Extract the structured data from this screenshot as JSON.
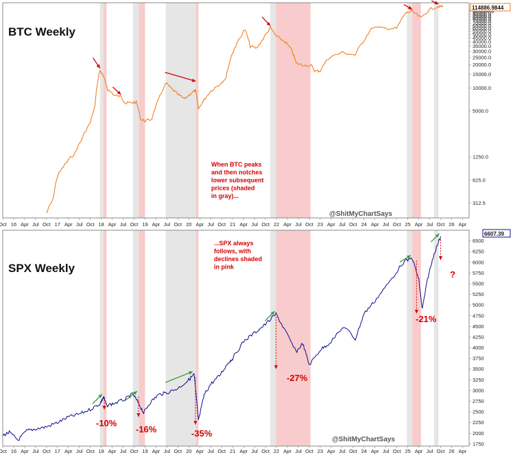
{
  "chart_data": [
    {
      "type": "line",
      "title": "BTC Weekly",
      "scale": "log",
      "color": "#f07f1e",
      "ylim": [
        200,
        130000
      ],
      "y_ticks": [
        "312.5",
        "625.0",
        "1250.0",
        "5000.0",
        "10000.0",
        "15000.0",
        "20000.0",
        "25000.0",
        "30000.0",
        "35000.0",
        "40000.0",
        "45000.0",
        "50000.0",
        "55000.0",
        "60000.0",
        "65000.0",
        "70000.0",
        "75000.0",
        "80000.0",
        "85000.0",
        "90000.0",
        "95000.0",
        "100000.0",
        "105000.0"
      ],
      "y_tick_values": [
        312.5,
        625,
        1250,
        5000,
        10000,
        15000,
        20000,
        25000,
        30000,
        35000,
        40000,
        45000,
        50000,
        55000,
        60000,
        65000,
        70000,
        75000,
        80000,
        85000,
        90000,
        95000,
        100000,
        105000
      ],
      "last_value_label": "114886.9844",
      "x": [
        2016.75,
        2016.9,
        2017.0,
        2017.2,
        2017.4,
        2017.55,
        2017.75,
        2017.85,
        2017.97,
        2018.05,
        2018.15,
        2018.3,
        2018.45,
        2018.55,
        2018.65,
        2018.8,
        2018.9,
        2019.0,
        2019.15,
        2019.3,
        2019.48,
        2019.6,
        2019.75,
        2019.9,
        2020.05,
        2020.15,
        2020.22,
        2020.35,
        2020.5,
        2020.7,
        2020.85,
        2021.0,
        2021.1,
        2021.28,
        2021.4,
        2021.55,
        2021.7,
        2021.86,
        2022.0,
        2022.2,
        2022.35,
        2022.45,
        2022.6,
        2022.8,
        2022.88,
        2023.0,
        2023.2,
        2023.5,
        2023.8,
        2024.0,
        2024.2,
        2024.5,
        2024.75,
        2024.95,
        2025.1,
        2025.3,
        2025.5,
        2025.7,
        2025.8
      ],
      "values": [
        230,
        350,
        700,
        1050,
        1400,
        2100,
        3500,
        5500,
        17000,
        14000,
        9500,
        8000,
        7700,
        6300,
        6400,
        6500,
        3900,
        3700,
        3900,
        6800,
        11500,
        9800,
        8200,
        7200,
        8500,
        9300,
        5300,
        7000,
        9100,
        11100,
        13500,
        29000,
        38000,
        58000,
        35000,
        33000,
        44000,
        61000,
        47000,
        40000,
        31000,
        21000,
        20000,
        19500,
        16500,
        16800,
        25000,
        29000,
        27000,
        42000,
        62000,
        60000,
        60000,
        95000,
        100000,
        82000,
        106000,
        117000,
        114887
      ],
      "annotation": "When BTC peaks and then notches lower subsequent prices (shaded in gray)..."
    },
    {
      "type": "line",
      "title": "SPX Weekly",
      "scale": "linear",
      "color": "#0a0a8c",
      "ylim": [
        1700,
        6750
      ],
      "y_ticks": [
        "1750",
        "2000",
        "2250",
        "2500",
        "2750",
        "3000",
        "3250",
        "3500",
        "3750",
        "4000",
        "4250",
        "4500",
        "4750",
        "5000",
        "5250",
        "5500",
        "5750",
        "6000",
        "6250",
        "6500"
      ],
      "y_tick_values": [
        1750,
        2000,
        2250,
        2500,
        2750,
        3000,
        3250,
        3500,
        3750,
        4000,
        4250,
        4500,
        4750,
        5000,
        5250,
        5500,
        5750,
        6000,
        6250,
        6500
      ],
      "last_value_label": "6607.39",
      "x": [
        2015.75,
        2015.9,
        2016.1,
        2016.3,
        2016.5,
        2016.75,
        2017.0,
        2017.25,
        2017.5,
        2017.75,
        2017.97,
        2018.05,
        2018.12,
        2018.3,
        2018.55,
        2018.72,
        2018.85,
        2018.97,
        2019.1,
        2019.3,
        2019.5,
        2019.75,
        2020.0,
        2020.12,
        2020.22,
        2020.35,
        2020.5,
        2020.7,
        2020.9,
        2021.0,
        2021.25,
        2021.5,
        2021.75,
        2021.99,
        2022.2,
        2022.45,
        2022.6,
        2022.75,
        2023.0,
        2023.2,
        2023.55,
        2023.8,
        2024.0,
        2024.25,
        2024.55,
        2024.9,
        2025.1,
        2025.25,
        2025.33,
        2025.45,
        2025.6,
        2025.75
      ],
      "values": [
        1950,
        2020,
        1840,
        2060,
        2100,
        2150,
        2250,
        2380,
        2450,
        2560,
        2690,
        2850,
        2650,
        2700,
        2800,
        2920,
        2700,
        2480,
        2700,
        2900,
        2950,
        3050,
        3250,
        3380,
        2300,
        2900,
        3150,
        3350,
        3650,
        3750,
        4150,
        4350,
        4550,
        4790,
        4400,
        3900,
        4100,
        3600,
        3950,
        4100,
        4500,
        4200,
        4800,
        5100,
        5500,
        6000,
        6100,
        5600,
        4900,
        5600,
        6200,
        6607
      ],
      "annotation": "...SPX always follows, with declines shaded in pink",
      "drawdowns": [
        "-10%",
        "-16%",
        "-35%",
        "-27%",
        "-21%"
      ],
      "question_mark": "?"
    }
  ],
  "shading": {
    "gray_bands": [
      [
        2017.97,
        2018.12
      ],
      [
        2018.72,
        2018.86
      ],
      [
        2019.47,
        2020.16
      ],
      [
        2021.86,
        2021.99
      ],
      [
        2024.98,
        2025.1
      ],
      [
        2025.6,
        2025.7
      ]
    ],
    "pink_bands": [
      [
        2018.05,
        2018.12
      ],
      [
        2018.86,
        2019.0
      ],
      [
        2020.16,
        2020.22
      ],
      [
        2021.99,
        2022.78
      ],
      [
        2025.1,
        2025.3
      ]
    ],
    "gray_color": "#e6e6e6",
    "pink_color": "#f8cccc"
  },
  "x_axis": {
    "xlim": [
      2015.75,
      2026.4
    ],
    "ticks": [
      {
        "label": "Oct",
        "value": 2015.75
      },
      {
        "label": "16",
        "value": 2016.0
      },
      {
        "label": "Apr",
        "value": 2016.25
      },
      {
        "label": "Jul",
        "value": 2016.5
      },
      {
        "label": "Oct",
        "value": 2016.75
      },
      {
        "label": "17",
        "value": 2017.0
      },
      {
        "label": "Apr",
        "value": 2017.25
      },
      {
        "label": "Jul",
        "value": 2017.5
      },
      {
        "label": "Oct",
        "value": 2017.75
      },
      {
        "label": "18",
        "value": 2018.0
      },
      {
        "label": "Apr",
        "value": 2018.25
      },
      {
        "label": "Jul",
        "value": 2018.5
      },
      {
        "label": "Oct",
        "value": 2018.75
      },
      {
        "label": "19",
        "value": 2019.0
      },
      {
        "label": "Apr",
        "value": 2019.25
      },
      {
        "label": "Jul",
        "value": 2019.5
      },
      {
        "label": "Oct",
        "value": 2019.75
      },
      {
        "label": "20",
        "value": 2020.0
      },
      {
        "label": "Apr",
        "value": 2020.25
      },
      {
        "label": "Jul",
        "value": 2020.5
      },
      {
        "label": "Oct",
        "value": 2020.75
      },
      {
        "label": "21",
        "value": 2021.0
      },
      {
        "label": "Apr",
        "value": 2021.25
      },
      {
        "label": "Jul",
        "value": 2021.5
      },
      {
        "label": "Oct",
        "value": 2021.75
      },
      {
        "label": "22",
        "value": 2022.0
      },
      {
        "label": "Apr",
        "value": 2022.25
      },
      {
        "label": "Jul",
        "value": 2022.5
      },
      {
        "label": "Oct",
        "value": 2022.75
      },
      {
        "label": "23",
        "value": 2023.0
      },
      {
        "label": "Apr",
        "value": 2023.25
      },
      {
        "label": "Jul",
        "value": 2023.5
      },
      {
        "label": "Oct",
        "value": 2023.75
      },
      {
        "label": "24",
        "value": 2024.0
      },
      {
        "label": "Apr",
        "value": 2024.25
      },
      {
        "label": "Jul",
        "value": 2024.5
      },
      {
        "label": "Oct",
        "value": 2024.75
      },
      {
        "label": "25",
        "value": 2025.0
      },
      {
        "label": "Apr",
        "value": 2025.25
      },
      {
        "label": "Jul",
        "value": 2025.5
      },
      {
        "label": "Oct",
        "value": 2025.75
      },
      {
        "label": "26",
        "value": 2026.0
      },
      {
        "label": "Apr",
        "value": 2026.25
      }
    ]
  },
  "watermark": "@ShitMyChartSays",
  "colors": {
    "arrow_red": "#d40000",
    "arrow_green": "#3a9a3a"
  }
}
